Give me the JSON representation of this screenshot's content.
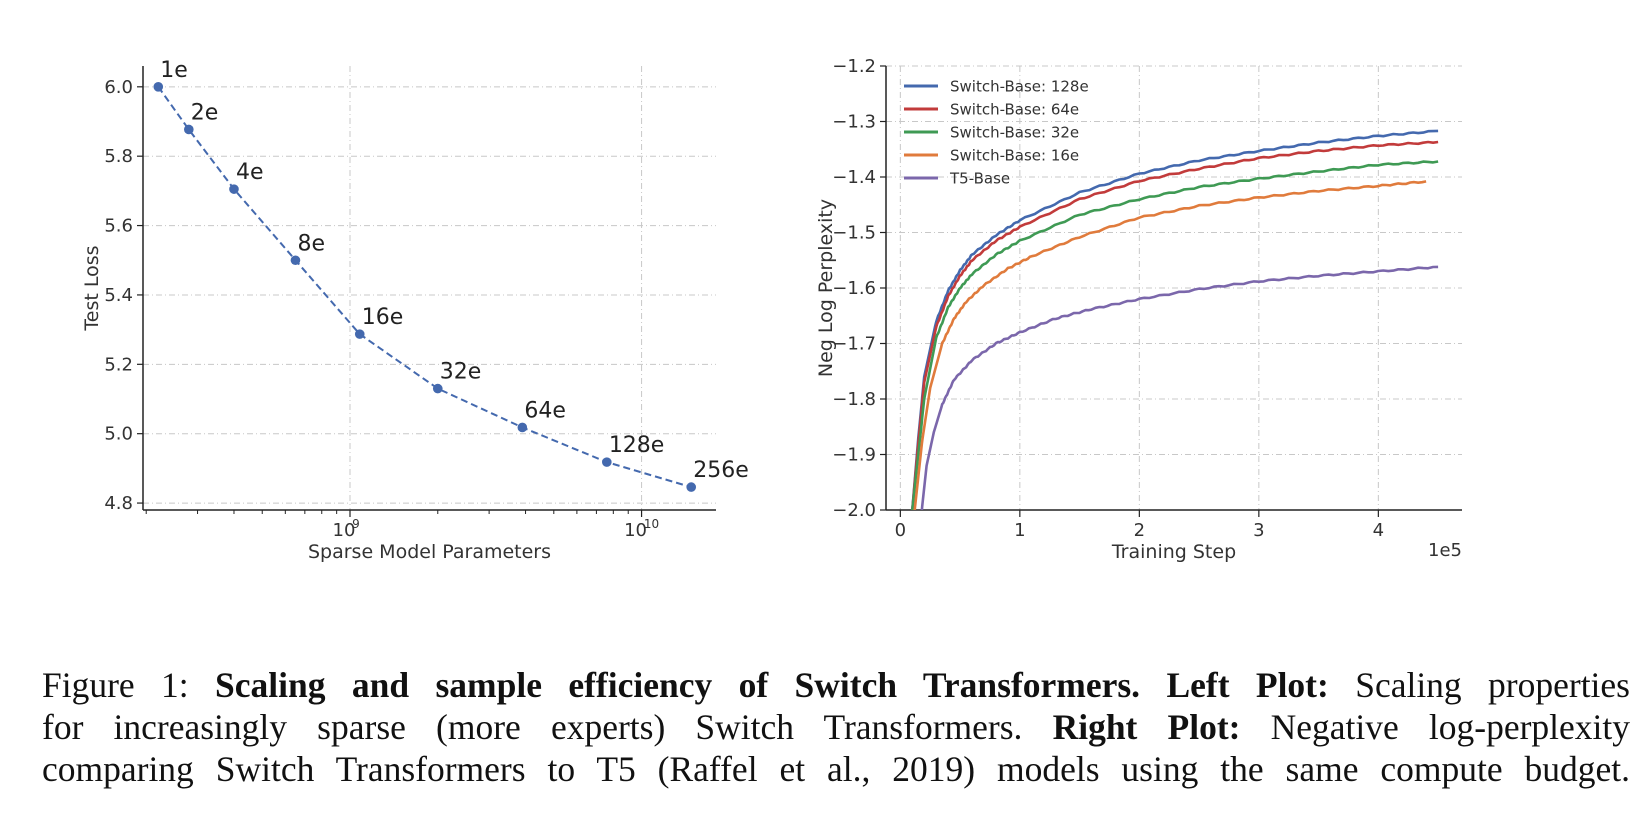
{
  "chart_data": [
    {
      "type": "line",
      "xlabel": "Sparse Model Parameters",
      "ylabel": "Test Loss",
      "x_scale": "log",
      "xlim": [
        195000000.0,
        18000000000.0
      ],
      "ylim": [
        4.78,
        6.06
      ],
      "grid": true,
      "x_ticks": [
        {
          "value": 1000000000.0,
          "label": "10",
          "exp": "9"
        },
        {
          "value": 10000000000.0,
          "label": "10",
          "exp": "10"
        }
      ],
      "y_ticks": [
        4.8,
        5.0,
        5.2,
        5.4,
        5.6,
        5.8,
        6.0
      ],
      "y_tick_labels": [
        "4.8",
        "5.0",
        "5.2",
        "5.4",
        "5.6",
        "5.8",
        "6.0"
      ],
      "series": [
        {
          "color": "#4469ae",
          "style": "dashed-with-markers",
          "x": [
            220000000.0,
            280000000.0,
            400000000.0,
            650000000.0,
            1080000000.0,
            2000000000.0,
            3900000000.0,
            7600000000.0,
            14800000000.0
          ],
          "y": [
            6.0,
            5.877,
            5.705,
            5.5,
            5.287,
            5.13,
            5.018,
            4.918,
            4.846
          ],
          "labels": [
            "1e",
            "2e",
            "4e",
            "8e",
            "16e",
            "32e",
            "64e",
            "128e",
            "256e"
          ]
        }
      ]
    },
    {
      "type": "line",
      "xlabel": "Training Step",
      "ylabel": "Neg Log Perplexity",
      "x_offset_text": "1e5",
      "xlim": [
        -0.12,
        4.7
      ],
      "ylim": [
        -2.0,
        -1.2
      ],
      "grid": true,
      "legend_position": "top-left",
      "x_ticks": [
        0,
        1,
        2,
        3,
        4
      ],
      "x_tick_labels": [
        "0",
        "1",
        "2",
        "3",
        "4"
      ],
      "y_ticks": [
        -1.2,
        -1.3,
        -1.4,
        -1.5,
        -1.6,
        -1.7,
        -1.8,
        -1.9,
        -2.0
      ],
      "y_tick_labels": [
        "−1.2",
        "−1.3",
        "−1.4",
        "−1.5",
        "−1.6",
        "−1.7",
        "−1.8",
        "−1.9",
        "−2.0"
      ],
      "series": [
        {
          "name": "Switch-Base: 128e",
          "color": "#4469ae",
          "x": [
            0.1,
            0.15,
            0.2,
            0.3,
            0.4,
            0.5,
            0.6,
            0.8,
            1.0,
            1.5,
            2.0,
            2.5,
            3.0,
            3.5,
            4.0,
            4.5
          ],
          "y": [
            -2.0,
            -1.87,
            -1.76,
            -1.66,
            -1.605,
            -1.568,
            -1.54,
            -1.505,
            -1.478,
            -1.428,
            -1.394,
            -1.37,
            -1.353,
            -1.338,
            -1.326,
            -1.317
          ]
        },
        {
          "name": "Switch-Base: 64e",
          "color": "#c23b3b",
          "x": [
            0.1,
            0.15,
            0.2,
            0.3,
            0.4,
            0.5,
            0.6,
            0.8,
            1.0,
            1.5,
            2.0,
            2.5,
            3.0,
            3.5,
            4.0,
            4.5
          ],
          "y": [
            -2.0,
            -1.88,
            -1.77,
            -1.67,
            -1.615,
            -1.578,
            -1.55,
            -1.515,
            -1.49,
            -1.44,
            -1.407,
            -1.385,
            -1.366,
            -1.353,
            -1.343,
            -1.337
          ]
        },
        {
          "name": "Switch-Base: 32e",
          "color": "#3f9a54",
          "x": [
            0.1,
            0.15,
            0.2,
            0.3,
            0.4,
            0.5,
            0.6,
            0.8,
            1.0,
            1.5,
            2.0,
            2.5,
            3.0,
            3.5,
            4.0,
            4.5
          ],
          "y": [
            -2.0,
            -1.9,
            -1.8,
            -1.69,
            -1.635,
            -1.6,
            -1.575,
            -1.54,
            -1.515,
            -1.468,
            -1.44,
            -1.418,
            -1.403,
            -1.39,
            -1.378,
            -1.372
          ]
        },
        {
          "name": "Switch-Base: 16e",
          "color": "#e07b3c",
          "x": [
            0.12,
            0.18,
            0.25,
            0.35,
            0.45,
            0.55,
            0.7,
            0.9,
            1.1,
            1.5,
            2.0,
            2.5,
            3.0,
            3.5,
            4.0,
            4.4
          ],
          "y": [
            -2.0,
            -1.88,
            -1.78,
            -1.7,
            -1.655,
            -1.625,
            -1.595,
            -1.565,
            -1.543,
            -1.508,
            -1.473,
            -1.452,
            -1.437,
            -1.425,
            -1.416,
            -1.408
          ]
        },
        {
          "name": "T5-Base",
          "color": "#7b67ab",
          "x": [
            0.18,
            0.22,
            0.28,
            0.35,
            0.45,
            0.6,
            0.8,
            1.0,
            1.3,
            1.6,
            2.0,
            2.5,
            3.0,
            3.5,
            4.0,
            4.5
          ],
          "y": [
            -2.0,
            -1.92,
            -1.86,
            -1.81,
            -1.765,
            -1.73,
            -1.7,
            -1.68,
            -1.655,
            -1.638,
            -1.62,
            -1.602,
            -1.588,
            -1.578,
            -1.57,
            -1.562
          ]
        }
      ]
    }
  ],
  "caption": {
    "line1_prefix": "Figure 1: ",
    "line1_bold": "Scaling and sample efficiency of Switch Transformers.",
    "line1_bold2": "Left Plot:",
    "line1_rest": " Scaling properties",
    "line2_start": "for increasingly sparse (more experts) Switch Transformers. ",
    "line2_bold": "Right Plot:",
    "line2_rest": " Negative log-perplexity",
    "line3": "comparing Switch Transformers to T5 (Raffel et al., 2019) models using the same compute budget."
  }
}
